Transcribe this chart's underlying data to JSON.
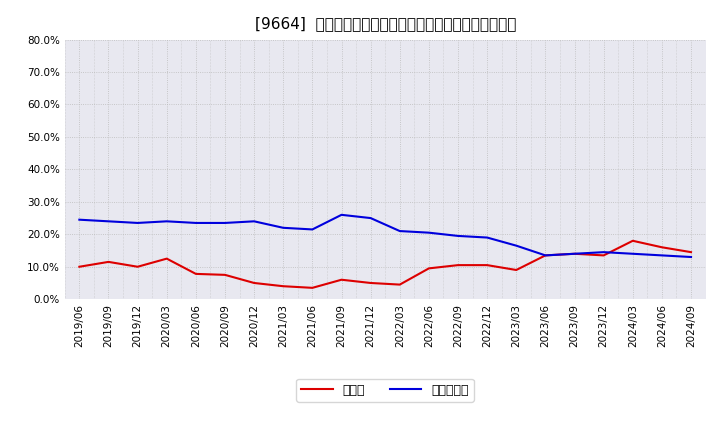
{
  "title": "[9664]  現預金、有利子負債の総資産に対する比率の推移",
  "x_labels": [
    "2019/06",
    "2019/09",
    "2019/12",
    "2020/03",
    "2020/06",
    "2020/09",
    "2020/12",
    "2021/03",
    "2021/06",
    "2021/09",
    "2021/12",
    "2022/03",
    "2022/06",
    "2022/09",
    "2022/12",
    "2023/03",
    "2023/06",
    "2023/09",
    "2023/12",
    "2024/03",
    "2024/06",
    "2024/09"
  ],
  "cash": [
    10.0,
    11.5,
    10.0,
    12.5,
    7.8,
    7.5,
    5.0,
    4.0,
    3.5,
    6.0,
    5.0,
    4.5,
    9.5,
    10.5,
    10.5,
    9.0,
    13.5,
    14.0,
    13.5,
    18.0,
    16.0,
    14.5
  ],
  "debt": [
    24.5,
    24.0,
    23.5,
    24.0,
    23.5,
    23.5,
    24.0,
    22.0,
    21.5,
    26.0,
    25.0,
    21.0,
    20.5,
    19.5,
    19.0,
    16.5,
    13.5,
    14.0,
    14.5,
    14.0,
    13.5,
    13.0
  ],
  "cash_color": "#dd0000",
  "debt_color": "#0000dd",
  "bg_color": "#ffffff",
  "plot_bg_color": "#e8e8f0",
  "grid_color": "#bbbbbb",
  "ylim": [
    0.0,
    80.0
  ],
  "yticks": [
    0.0,
    10.0,
    20.0,
    30.0,
    40.0,
    50.0,
    60.0,
    70.0,
    80.0
  ],
  "legend_cash": "現預金",
  "legend_debt": "有利子負債",
  "title_fontsize": 11,
  "axis_fontsize": 7.5,
  "legend_fontsize": 9
}
